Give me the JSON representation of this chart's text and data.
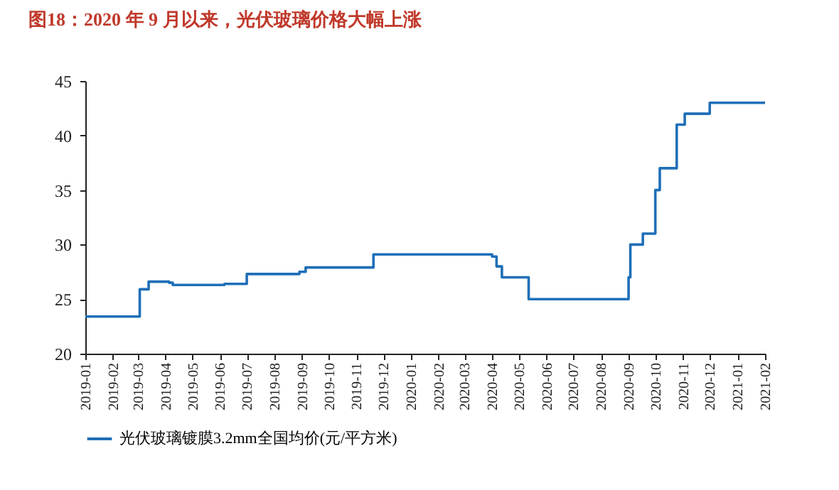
{
  "chart_data": {
    "type": "step",
    "title": "图18：2020 年 9 月以来，光伏玻璃价格大幅上涨",
    "x": [
      "2019-01-01",
      "2019-03-03",
      "2019-03-13",
      "2019-04-05",
      "2019-04-09",
      "2019-06-06",
      "2019-07-01",
      "2019-08-29",
      "2019-09-05",
      "2019-11-20",
      "2020-04-01",
      "2020-04-06",
      "2020-04-12",
      "2020-05-12",
      "2020-09-01",
      "2020-09-03",
      "2020-09-17",
      "2020-10-01",
      "2020-10-06",
      "2020-10-25",
      "2020-11-03",
      "2020-12-01",
      "2021-02-01"
    ],
    "series": [
      {
        "name": "光伏玻璃镀膜3.2mm全国均价(元/平方米)",
        "color": "#1f6fb7",
        "values": [
          23.4,
          25.9,
          26.6,
          26.5,
          26.3,
          26.4,
          27.3,
          27.5,
          27.9,
          29.1,
          28.9,
          28.0,
          27.0,
          25.0,
          27.0,
          30.0,
          31.0,
          35.0,
          37.0,
          41.0,
          42.0,
          43.0,
          43.0
        ]
      }
    ],
    "xlim": [
      "2019-01",
      "2021-02"
    ],
    "xticks": [
      "2019-01",
      "2019-02",
      "2019-03",
      "2019-04",
      "2019-05",
      "2019-06",
      "2019-07",
      "2019-08",
      "2019-09",
      "2019-10",
      "2019-11",
      "2019-12",
      "2020-01",
      "2020-02",
      "2020-03",
      "2020-04",
      "2020-05",
      "2020-06",
      "2020-07",
      "2020-08",
      "2020-09",
      "2020-10",
      "2020-11",
      "2020-12",
      "2021-01",
      "2021-02"
    ],
    "ylim": [
      20,
      45
    ],
    "yticks": [
      20,
      25,
      30,
      35,
      40,
      45
    ],
    "grid": false,
    "legend": "bottom",
    "marker": "none",
    "line_style": "solid"
  }
}
